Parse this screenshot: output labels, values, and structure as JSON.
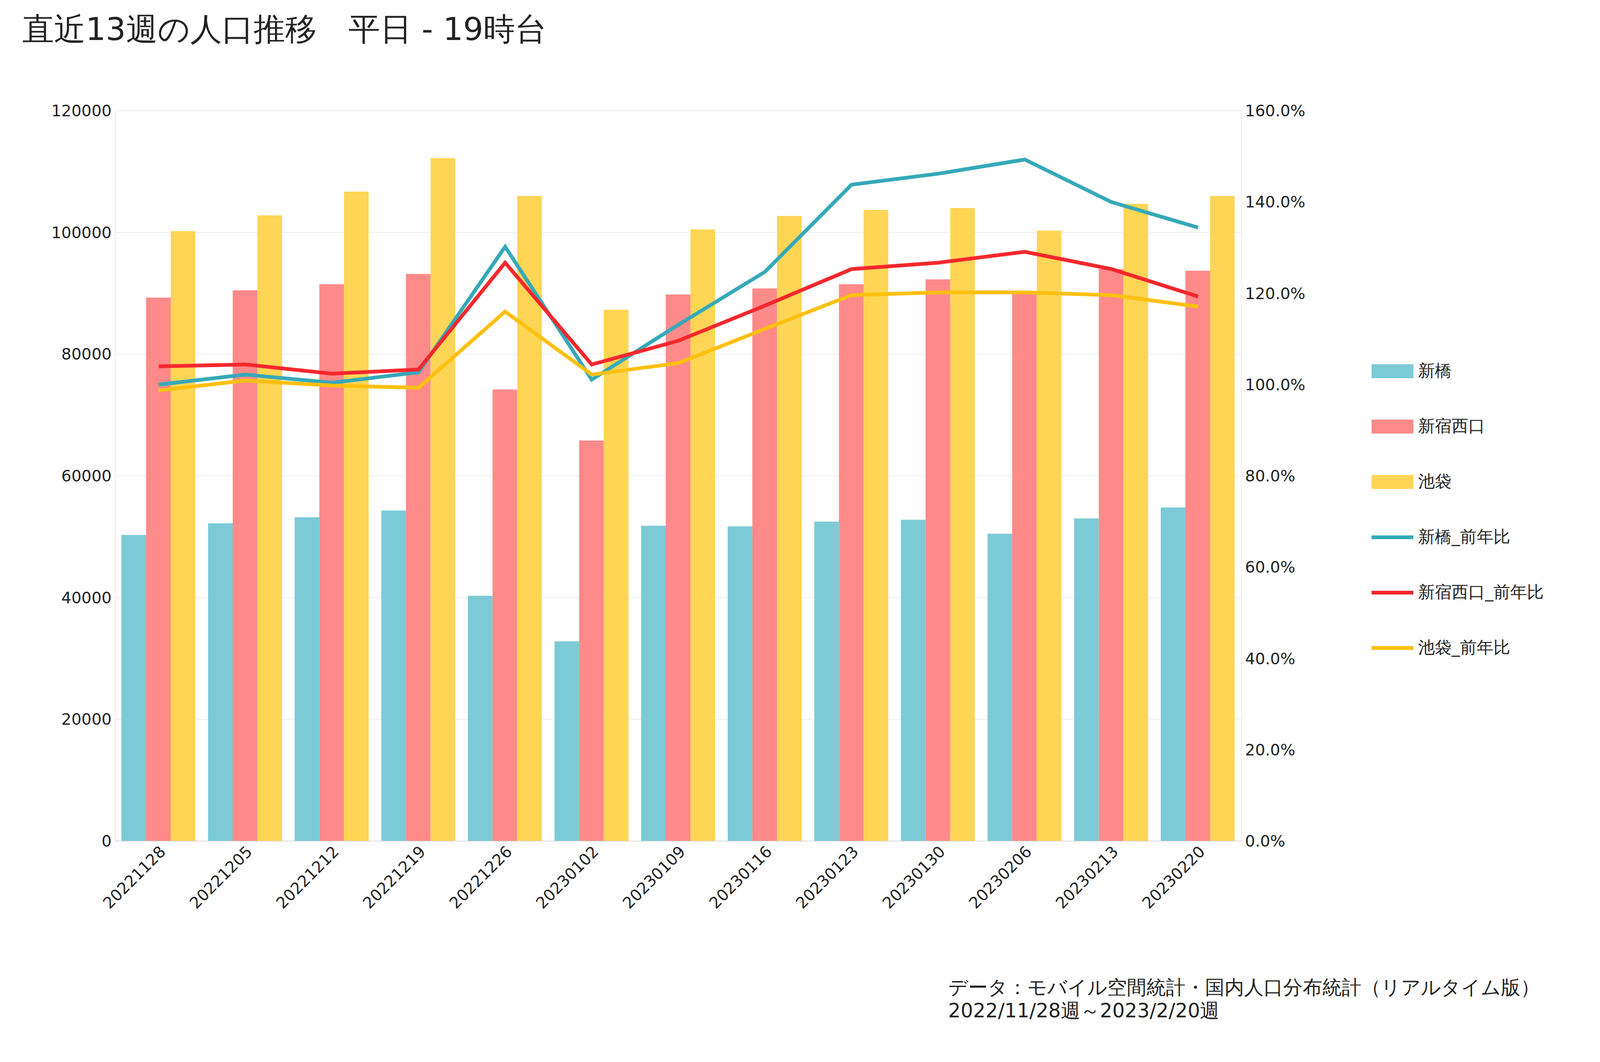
{
  "chart_data": {
    "type": "bar",
    "title": "直近13週の人口推移　平日 - 19時台",
    "categories": [
      "20221128",
      "20221205",
      "20221212",
      "20221219",
      "20221226",
      "20230102",
      "20230109",
      "20230116",
      "20230123",
      "20230130",
      "20230206",
      "20230213",
      "20230220"
    ],
    "series": [
      {
        "name": "新橋",
        "type": "bar",
        "color": "#7ccad6",
        "values": [
          50300,
          52200,
          53200,
          54300,
          40300,
          32800,
          51800,
          51700,
          52500,
          52800,
          50500,
          53000,
          54800
        ]
      },
      {
        "name": "新宿西口",
        "type": "bar",
        "color": "#ff8a8a",
        "values": [
          89300,
          90500,
          91500,
          93200,
          74200,
          65800,
          89800,
          90800,
          91500,
          92300,
          90000,
          94000,
          93700
        ]
      },
      {
        "name": "池袋",
        "type": "bar",
        "color": "#ffd556",
        "values": [
          100200,
          102800,
          106700,
          112200,
          106000,
          87300,
          100500,
          102700,
          103700,
          104000,
          100300,
          104700,
          106000
        ]
      },
      {
        "name": "新橋_前年比",
        "type": "line",
        "axis": "y2",
        "color": "#35a9b8",
        "values": [
          100.0,
          102.2,
          100.4,
          102.7,
          130.2,
          101.1,
          113.1,
          124.7,
          143.8,
          146.2,
          149.3,
          140.0,
          134.4
        ]
      },
      {
        "name": "新宿西口_前年比",
        "type": "line",
        "axis": "y2",
        "color": "#f5282d",
        "values": [
          104.0,
          104.4,
          102.4,
          103.3,
          126.7,
          104.4,
          109.6,
          117.3,
          125.3,
          126.7,
          129.1,
          125.3,
          119.3
        ]
      },
      {
        "name": "池袋_前年比",
        "type": "line",
        "axis": "y2",
        "color": "#fdc010",
        "values": [
          98.7,
          100.9,
          99.8,
          99.3,
          116.0,
          102.2,
          104.7,
          112.2,
          119.6,
          120.2,
          120.2,
          119.6,
          117.1
        ]
      }
    ],
    "ylim": [
      0,
      120000
    ],
    "yticks": [
      0,
      20000,
      40000,
      60000,
      80000,
      100000,
      120000
    ],
    "y2lim": [
      0,
      160
    ],
    "y2ticks": [
      {
        "value": 0,
        "label": "0.0%"
      },
      {
        "value": 20,
        "label": "20.0%"
      },
      {
        "value": 40,
        "label": "40.0%"
      },
      {
        "value": 60,
        "label": "60.0%"
      },
      {
        "value": 80,
        "label": "80.0%"
      },
      {
        "value": 100,
        "label": "100.0%"
      },
      {
        "value": 120,
        "label": "120.0%"
      },
      {
        "value": 140,
        "label": "140.0%"
      },
      {
        "value": 160,
        "label": "160.0%"
      }
    ],
    "grid": true,
    "legend": "right",
    "annotations": [
      "データ：モバイル空間統計・国内人口分布統計（リアルタイム版）",
      "2022/11/28週～2023/2/20週"
    ]
  }
}
